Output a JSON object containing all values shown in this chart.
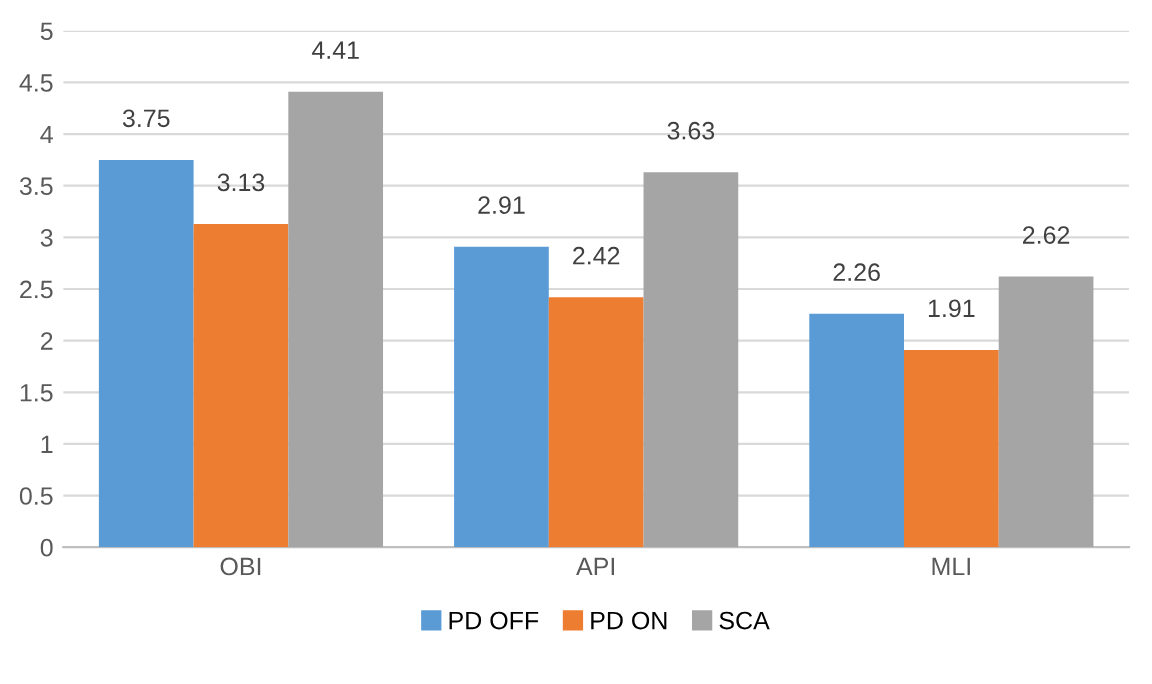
{
  "chart_data": {
    "type": "bar",
    "categories": [
      "OBI",
      "API",
      "MLI"
    ],
    "series": [
      {
        "name": "PD OFF",
        "color": "#5b9bd5",
        "values": [
          3.75,
          2.91,
          2.26
        ]
      },
      {
        "name": "PD ON",
        "color": "#ed7d31",
        "values": [
          3.13,
          2.42,
          1.91
        ]
      },
      {
        "name": "SCA",
        "color": "#a5a5a5",
        "values": [
          4.41,
          3.63,
          2.62
        ]
      }
    ],
    "ylim": [
      0,
      5
    ],
    "yticks": [
      0,
      0.5,
      1,
      1.5,
      2,
      2.5,
      3,
      3.5,
      4,
      4.5,
      5
    ],
    "grid": "y",
    "legend": "bottom",
    "data_labels": true
  }
}
